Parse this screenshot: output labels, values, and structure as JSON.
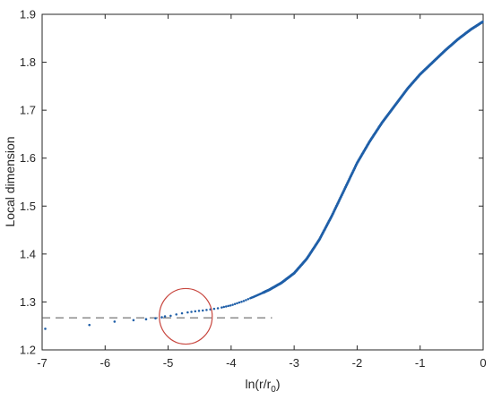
{
  "chart_data": {
    "type": "scatter",
    "xlabel": "ln(r/r",
    "xlabel_sub": "0",
    "xlabel_close": ")",
    "ylabel": "Local dimension",
    "xlim": [
      -7,
      0
    ],
    "ylim": [
      1.2,
      1.9
    ],
    "xticks": [
      -7,
      -6,
      -5,
      -4,
      -3,
      -2,
      -1,
      0
    ],
    "yticks": [
      1.2,
      1.3,
      1.4,
      1.5,
      1.6,
      1.7,
      1.8,
      1.9
    ],
    "xtick_labels": [
      "-7",
      "-6",
      "-5",
      "-4",
      "-3",
      "-2",
      "-1",
      "0"
    ],
    "ytick_labels": [
      "1.2",
      "1.3",
      "1.4",
      "1.5",
      "1.6",
      "1.7",
      "1.8",
      "1.9"
    ],
    "grid": false,
    "series": [
      {
        "marker": "dot",
        "color": "#1f5fa8",
        "x": [
          -6.95,
          -6.25,
          -5.85,
          -5.55,
          -5.35,
          -5.2,
          -5.1
        ],
        "y": [
          1.244,
          1.252,
          1.259,
          1.262,
          1.264,
          1.266,
          1.268
        ]
      },
      {
        "marker": "dense-dots",
        "color": "#1f5fa8",
        "x_range": [
          -5.05,
          0
        ],
        "curve": [
          [
            -5.0,
            1.27
          ],
          [
            -4.8,
            1.276
          ],
          [
            -4.6,
            1.28
          ],
          [
            -4.4,
            1.283
          ],
          [
            -4.2,
            1.287
          ],
          [
            -4.0,
            1.293
          ],
          [
            -3.8,
            1.302
          ],
          [
            -3.6,
            1.313
          ],
          [
            -3.4,
            1.325
          ],
          [
            -3.2,
            1.34
          ],
          [
            -3.0,
            1.36
          ],
          [
            -2.8,
            1.39
          ],
          [
            -2.6,
            1.43
          ],
          [
            -2.4,
            1.48
          ],
          [
            -2.2,
            1.535
          ],
          [
            -2.0,
            1.59
          ],
          [
            -1.8,
            1.635
          ],
          [
            -1.6,
            1.675
          ],
          [
            -1.4,
            1.71
          ],
          [
            -1.2,
            1.745
          ],
          [
            -1.0,
            1.775
          ],
          [
            -0.8,
            1.8
          ],
          [
            -0.6,
            1.825
          ],
          [
            -0.4,
            1.848
          ],
          [
            -0.2,
            1.868
          ],
          [
            0.0,
            1.885
          ]
        ]
      }
    ],
    "reference_line": {
      "y": 1.267,
      "x_from": -7,
      "x_to": -3.35,
      "style": "dashed",
      "color": "#555555"
    },
    "annotation_circle": {
      "cx": -4.72,
      "cy": 1.27,
      "rx": 0.42,
      "ry": 0.058,
      "color": "#c8473f"
    }
  }
}
